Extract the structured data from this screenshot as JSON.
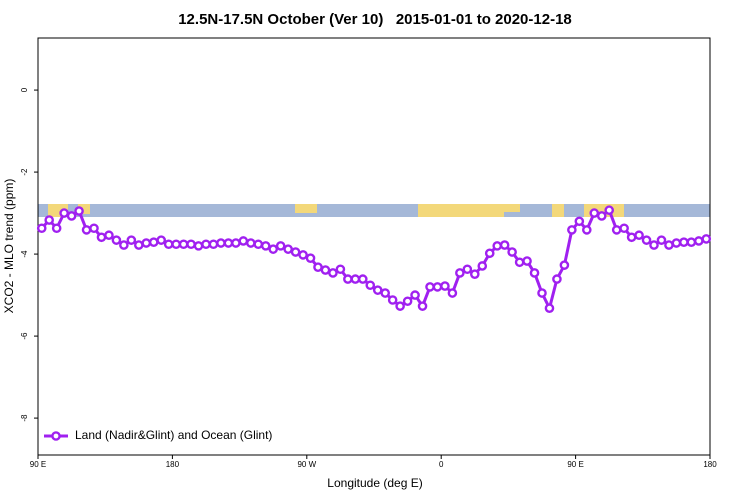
{
  "chart_data": {
    "type": "line",
    "title": "12.5N-17.5N October (Ver 10)   2015-01-01 to 2020-12-18",
    "x_label": "Longitude (deg E)",
    "y_label": "XCO2 - MLO trend (ppm)",
    "xlim": [
      90,
      540
    ],
    "ylim": [
      -8.9,
      1.27
    ],
    "xticks": [
      {
        "value": 90,
        "label": "90 E"
      },
      180,
      {
        "value": 270,
        "label": "90 W"
      },
      {
        "value": 360,
        "label": "0"
      },
      {
        "value": 450,
        "label": "90 E"
      },
      {
        "value": 540,
        "label": "180"
      }
    ],
    "yticks": [
      -8,
      -6,
      -4,
      -2,
      0
    ],
    "legend_position": "lower left",
    "x": [
      92.5,
      97.5,
      102.5,
      107.5,
      112.5,
      117.5,
      122.5,
      127.5,
      132.5,
      137.5,
      142.5,
      147.5,
      152.5,
      157.5,
      162.5,
      167.5,
      172.5,
      177.5,
      182.5,
      187.5,
      192.5,
      197.5,
      202.5,
      207.5,
      212.5,
      217.5,
      222.5,
      227.5,
      232.5,
      237.5,
      242.5,
      247.5,
      252.5,
      257.5,
      262.5,
      267.5,
      272.5,
      277.5,
      282.5,
      287.5,
      292.5,
      297.5,
      302.5,
      307.5,
      312.5,
      317.5,
      322.5,
      327.5,
      332.5,
      337.5,
      342.5,
      347.5,
      352.5,
      357.5,
      362.5,
      367.5,
      372.5,
      377.5,
      382.5,
      387.5,
      392.5,
      397.5,
      402.5,
      407.5,
      412.5,
      417.5,
      422.5,
      427.5,
      432.5,
      437.5,
      442.5,
      447.5,
      452.5,
      457.5,
      462.5,
      467.5,
      472.5,
      477.5,
      482.5,
      487.5,
      492.5,
      497.5,
      502.5,
      507.5,
      512.5,
      517.5,
      522.5,
      527.5,
      532.5,
      537.5
    ],
    "series": [
      {
        "name": "Land (Nadir&Glint) and Ocean (Glint)",
        "color": "#a020f0",
        "values": [
          -3.37,
          -3.17,
          -3.37,
          -3.0,
          -3.07,
          -2.95,
          -3.41,
          -3.37,
          -3.59,
          -3.54,
          -3.66,
          -3.78,
          -3.66,
          -3.78,
          -3.73,
          -3.71,
          -3.66,
          -3.76,
          -3.76,
          -3.76,
          -3.76,
          -3.8,
          -3.76,
          -3.76,
          -3.73,
          -3.73,
          -3.73,
          -3.68,
          -3.73,
          -3.76,
          -3.8,
          -3.88,
          -3.8,
          -3.88,
          -3.95,
          -4.02,
          -4.1,
          -4.32,
          -4.39,
          -4.46,
          -4.37,
          -4.61,
          -4.61,
          -4.61,
          -4.76,
          -4.88,
          -4.95,
          -5.12,
          -5.27,
          -5.15,
          -5.0,
          -5.27,
          -4.8,
          -4.8,
          -4.78,
          -4.95,
          -4.46,
          -4.37,
          -4.49,
          -4.29,
          -3.98,
          -3.8,
          -3.78,
          -3.95,
          -4.2,
          -4.17,
          -4.46,
          -4.95,
          -5.32,
          -4.61,
          -4.27,
          -3.41,
          -3.2,
          -3.41,
          -3.0,
          -3.07,
          -2.93,
          -3.41,
          -3.37,
          -3.59,
          -3.54,
          -3.66,
          -3.78,
          -3.66,
          -3.78,
          -3.73,
          -3.71,
          -3.71,
          -3.68,
          -3.63
        ]
      }
    ]
  }
}
